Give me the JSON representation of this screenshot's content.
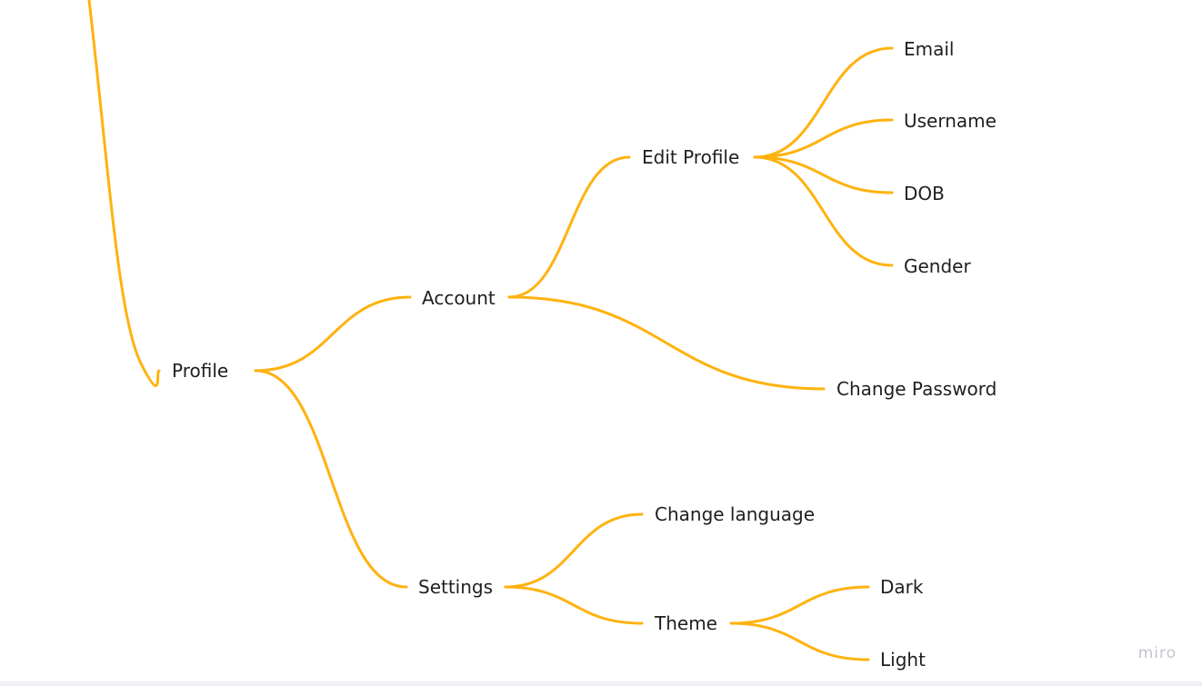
{
  "theme": {
    "edge_color": "#FFB20F",
    "text_color": "#1f1f1f",
    "watermark_color": "#c2c6cf"
  },
  "nodes": {
    "profile": "Profile",
    "account": "Account",
    "edit_profile": "Edit Profile",
    "email": "Email",
    "username": "Username",
    "dob": "DOB",
    "gender": "Gender",
    "change_password": "Change Password",
    "settings": "Settings",
    "change_language": "Change language",
    "theme": "Theme",
    "dark": "Dark",
    "light": "Light"
  },
  "edges": [
    {
      "from": "root",
      "to": "profile"
    },
    {
      "from": "profile",
      "to": "account"
    },
    {
      "from": "profile",
      "to": "settings"
    },
    {
      "from": "account",
      "to": "edit_profile"
    },
    {
      "from": "account",
      "to": "change_password"
    },
    {
      "from": "edit_profile",
      "to": "email"
    },
    {
      "from": "edit_profile",
      "to": "username"
    },
    {
      "from": "edit_profile",
      "to": "dob"
    },
    {
      "from": "edit_profile",
      "to": "gender"
    },
    {
      "from": "settings",
      "to": "change_language"
    },
    {
      "from": "settings",
      "to": "theme"
    },
    {
      "from": "theme",
      "to": "dark"
    },
    {
      "from": "theme",
      "to": "light"
    }
  ],
  "watermark": "miro"
}
